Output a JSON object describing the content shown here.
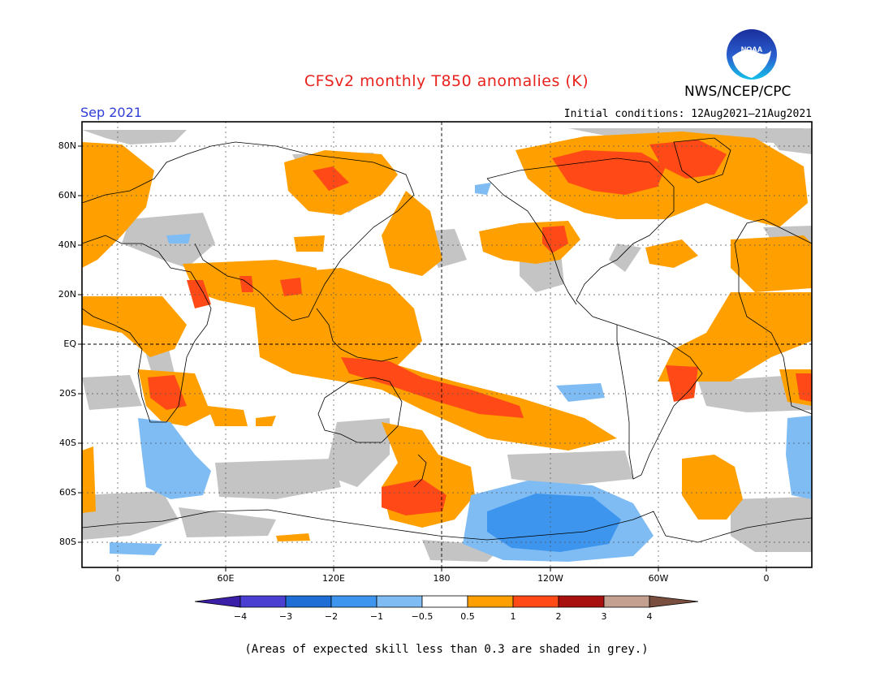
{
  "title": "CFSv2 monthly T850 anomalies (K)",
  "agency": "NWS/NCEP/CPC",
  "logo_text": "NOAA",
  "forecast_month": "Sep 2021",
  "initial_conditions": "Initial conditions: 12Aug2021–21Aug2021",
  "footnote": "(Areas of expected skill less than 0.3 are shaded in grey.)",
  "lat_ticks": [
    "80N",
    "60N",
    "40N",
    "20N",
    "EQ",
    "20S",
    "40S",
    "60S",
    "80S"
  ],
  "lon_ticks": [
    "0",
    "60E",
    "120E",
    "180",
    "120W",
    "60W",
    "0"
  ],
  "colorbar": {
    "labels": [
      "−4",
      "−3",
      "−2",
      "−1",
      "−0.5",
      "0.5",
      "1",
      "2",
      "3",
      "4"
    ],
    "colors": [
      "#3c1fa8",
      "#4a3fd1",
      "#1f6ed6",
      "#3d95ee",
      "#7fbcf4",
      "#ffffff",
      "#ffa000",
      "#ff4a17",
      "#a80f0f",
      "#c4a090",
      "#7a4e3e"
    ]
  },
  "colors": {
    "title": "#e8231e",
    "month": "#2f3ed6",
    "skill_grey": "#c4c4c4",
    "warm_1": "#ffa000",
    "warm_2": "#ff4a17",
    "cool_1": "#7fbcf4",
    "cool_2": "#3d95ee"
  }
}
